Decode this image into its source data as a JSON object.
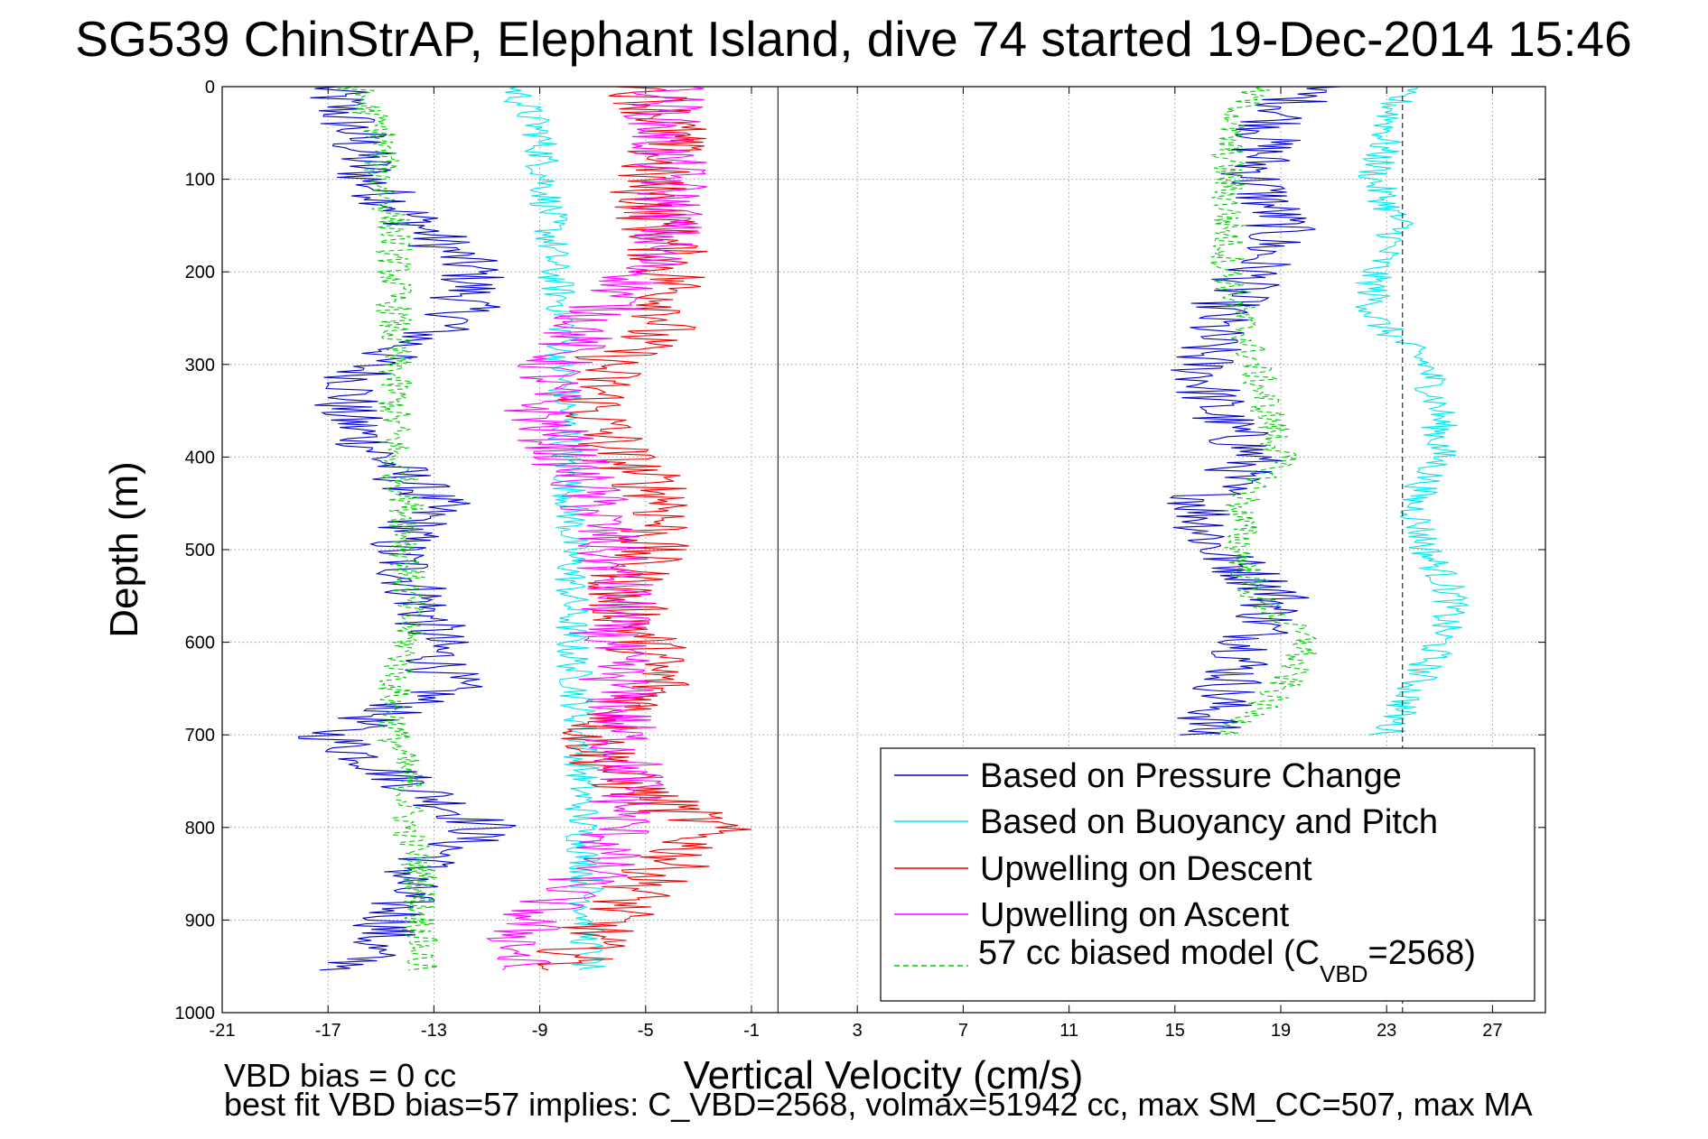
{
  "chart_data": {
    "type": "line",
    "title": "SG539 ChinStrAP, Elephant Island, dive 74 started 19-Dec-2014 15:46",
    "xlabel": "Vertical Velocity (cm/s)",
    "ylabel": "Depth (m)",
    "xlim": [
      -21,
      29
    ],
    "ylim": [
      0,
      1000
    ],
    "y_reversed": true,
    "grid": true,
    "x_ticks": [
      -21,
      -17,
      -13,
      -9,
      -5,
      -1,
      3,
      7,
      11,
      15,
      19,
      23,
      27
    ],
    "y_ticks": [
      0,
      100,
      200,
      300,
      400,
      500,
      600,
      700,
      800,
      900,
      1000
    ],
    "reference_lines": [
      {
        "x": 0,
        "style": "solid",
        "color": "#000000"
      },
      {
        "x": 23.6,
        "style": "dashed",
        "color": "#000000"
      }
    ],
    "legend_position": "bottom-right",
    "series": [
      {
        "name": "Based on Pressure Change",
        "color": "#0000cc",
        "depth": [
          0,
          50,
          100,
          150,
          200,
          250,
          300,
          350,
          400,
          450,
          500,
          550,
          600,
          650,
          700,
          750,
          800,
          850,
          900,
          950
        ],
        "down": [
          -17,
          -16,
          -15.5,
          -13.5,
          -11.5,
          -12,
          -15.5,
          -16.5,
          -15,
          -13,
          -14.5,
          -13.5,
          -13,
          -12.5,
          -17,
          -14,
          -11,
          -14,
          -14.5,
          -16
        ],
        "up": [
          20,
          18.5,
          18,
          19,
          18,
          16.5,
          16,
          16.5,
          18,
          16,
          16.5,
          19,
          18,
          17,
          16,
          null,
          null,
          null,
          null,
          null
        ]
      },
      {
        "name": "Based on Buoyancy and Pitch",
        "color": "#00e5ee",
        "depth": [
          0,
          50,
          100,
          150,
          200,
          250,
          300,
          350,
          400,
          450,
          500,
          550,
          600,
          650,
          700,
          750,
          800,
          850,
          900,
          950
        ],
        "down": [
          -10,
          -9,
          -8.8,
          -8.6,
          -8.5,
          -8,
          -8.2,
          -8,
          -8,
          -7.8,
          -7.8,
          -7.8,
          -7.8,
          -7.6,
          -7.4,
          -7.4,
          -7.4,
          -7.2,
          -7.2,
          -7.2
        ],
        "up": [
          23.5,
          23,
          22.5,
          23.5,
          22.5,
          22.5,
          24.5,
          25,
          25,
          24,
          24.5,
          25.5,
          25,
          24,
          23,
          null,
          null,
          null,
          null,
          null
        ]
      },
      {
        "name": "Upwelling on Descent",
        "color": "#ee0000",
        "depth": [
          0,
          50,
          100,
          150,
          200,
          250,
          300,
          350,
          400,
          450,
          500,
          550,
          600,
          650,
          700,
          750,
          800,
          850,
          900,
          950
        ],
        "values": [
          -5,
          -4,
          -5,
          -4.5,
          -4,
          -4,
          -6.5,
          -7,
          -6,
          -4,
          -5,
          -6,
          -5,
          -4.5,
          -7,
          -6,
          -2.5,
          -4.5,
          -6.5,
          -8
        ]
      },
      {
        "name": "Upwelling on Ascent",
        "color": "#ff00ff",
        "depth": [
          0,
          50,
          100,
          150,
          200,
          250,
          300,
          350,
          400,
          450,
          500,
          550,
          600,
          650,
          700,
          750,
          800,
          850,
          900,
          950
        ],
        "values": [
          -4,
          -4.5,
          -4,
          -4.2,
          -5,
          -7,
          -8.5,
          -9,
          -8,
          -7,
          -6.5,
          -6,
          -6.5,
          -6,
          -6,
          -5.5,
          -6,
          -7,
          -9.5,
          -10
        ]
      },
      {
        "name_parts": [
          "57 cc biased model (C",
          "VBD",
          "=2568)"
        ],
        "color": "#00cc00",
        "dashed": true,
        "depth": [
          0,
          50,
          100,
          150,
          200,
          250,
          300,
          350,
          400,
          450,
          500,
          550,
          600,
          650,
          700,
          750,
          800,
          850,
          900,
          950
        ],
        "down": [
          -16,
          -15,
          -15,
          -14.5,
          -14.5,
          -14.5,
          -14.5,
          -14.5,
          -14.5,
          -14,
          -14,
          -14,
          -14,
          -14.5,
          -14.5,
          -14,
          -14,
          -13.5,
          -13.5,
          -13.5
        ],
        "up": [
          18,
          17,
          17,
          17,
          17,
          17.5,
          18,
          18.5,
          19,
          17.5,
          17.5,
          18,
          20,
          19,
          17,
          null,
          null,
          null,
          null,
          null
        ]
      }
    ]
  },
  "footnotes": {
    "line1": "VBD bias = 0 cc",
    "line2": "best fit VBD bias=57 implies: C_VBD=2568, volmax=51942 cc, max SM_CC=507, max MA"
  }
}
